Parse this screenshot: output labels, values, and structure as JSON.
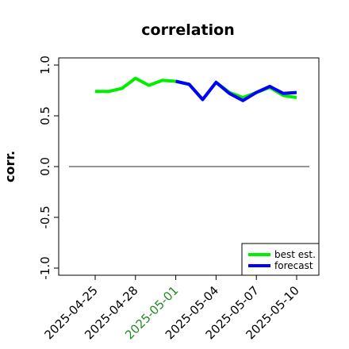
{
  "chart_data": {
    "type": "line",
    "title": "correlation",
    "xlabel": "",
    "ylabel": "corr.",
    "ylim": [
      -1.0,
      1.0
    ],
    "yticks": [
      "-1.0",
      "-0.5",
      "0.0",
      "0.5",
      "1.0"
    ],
    "x": [
      "2025-04-25",
      "2025-04-26",
      "2025-04-27",
      "2025-04-28",
      "2025-04-29",
      "2025-04-30",
      "2025-05-01",
      "2025-05-02",
      "2025-05-03",
      "2025-05-04",
      "2025-05-05",
      "2025-05-06",
      "2025-05-07",
      "2025-05-08",
      "2025-05-09",
      "2025-05-10"
    ],
    "xticks": [
      {
        "label": "2025-04-25",
        "color": "#000000"
      },
      {
        "label": "2025-04-28",
        "color": "#000000"
      },
      {
        "label": "2025-05-01",
        "color": "#228B22"
      },
      {
        "label": "2025-05-04",
        "color": "#000000"
      },
      {
        "label": "2025-05-07",
        "color": "#000000"
      },
      {
        "label": "2025-05-10",
        "color": "#000000"
      }
    ],
    "reference_line": 0.0,
    "series": [
      {
        "name": "best est.",
        "color": "#00ee00",
        "values": [
          0.74,
          0.74,
          0.77,
          0.87,
          0.8,
          0.85,
          0.84,
          0.81,
          0.66,
          0.83,
          0.73,
          0.68,
          0.73,
          0.78,
          0.7,
          0.68
        ]
      },
      {
        "name": "forecast",
        "color": "#0000ff",
        "values": [
          null,
          null,
          null,
          null,
          null,
          null,
          0.84,
          0.81,
          0.66,
          0.83,
          0.72,
          0.65,
          0.73,
          0.79,
          0.72,
          0.73
        ]
      }
    ],
    "legend_position": "bottom-right",
    "grid": false
  }
}
